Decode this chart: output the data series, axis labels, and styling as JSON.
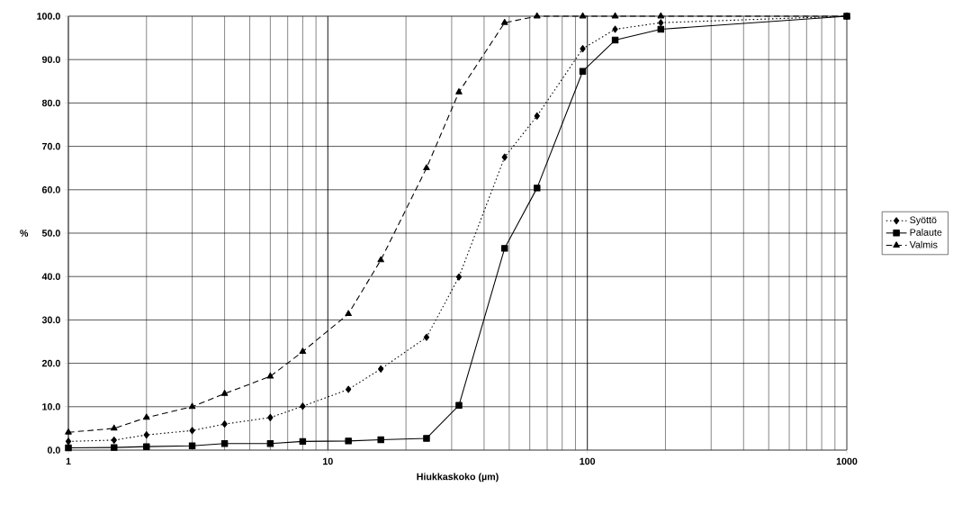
{
  "chart_data": {
    "type": "line",
    "xlabel": "Hiukkaskoko (µm)",
    "ylabel": "%",
    "log": "x",
    "grid": true,
    "legend": "right",
    "x": [
      1,
      1.5,
      2,
      3,
      4,
      6,
      8,
      12,
      16,
      24,
      32,
      48,
      64,
      96,
      128,
      192,
      1000
    ],
    "xlim": [
      1,
      1000
    ],
    "xticks": [
      1,
      10,
      100,
      1000
    ],
    "ylim": [
      0,
      100
    ],
    "yticks": [
      {
        "value": 0,
        "label": "0.0"
      },
      {
        "value": 10,
        "label": "10.0"
      },
      {
        "value": 20,
        "label": "20.0"
      },
      {
        "value": 30,
        "label": "30.0"
      },
      {
        "value": 40,
        "label": "40.0"
      },
      {
        "value": 50,
        "label": "50.0"
      },
      {
        "value": 60,
        "label": "60.0"
      },
      {
        "value": 70,
        "label": "70.0"
      },
      {
        "value": 80,
        "label": "80.0"
      },
      {
        "value": 90,
        "label": "90.0"
      },
      {
        "value": 100,
        "label": "100.0"
      }
    ],
    "series": [
      {
        "name": "Syöttö",
        "color": "#000000",
        "marker": "diamond",
        "line_style": "dotted",
        "values": [
          2.0,
          2.3,
          3.5,
          4.5,
          6.0,
          7.5,
          10.1,
          14.0,
          18.7,
          26.0,
          39.9,
          67.5,
          77.0,
          92.5,
          97.0,
          98.5,
          100
        ]
      },
      {
        "name": "Palaute",
        "color": "#000000",
        "marker": "square",
        "line_style": "solid",
        "values": [
          0.5,
          0.6,
          0.8,
          1.0,
          1.5,
          1.5,
          2.0,
          2.1,
          2.4,
          2.7,
          10.3,
          46.5,
          60.4,
          87.3,
          94.5,
          97.0,
          100
        ]
      },
      {
        "name": "Valmis",
        "color": "#000000",
        "marker": "triangle",
        "line_style": "dashed",
        "values": [
          4.1,
          5.0,
          7.5,
          10.0,
          13.0,
          17.0,
          22.7,
          31.4,
          43.8,
          65.0,
          82.5,
          98.5,
          100,
          100,
          100,
          100,
          100
        ]
      }
    ]
  }
}
